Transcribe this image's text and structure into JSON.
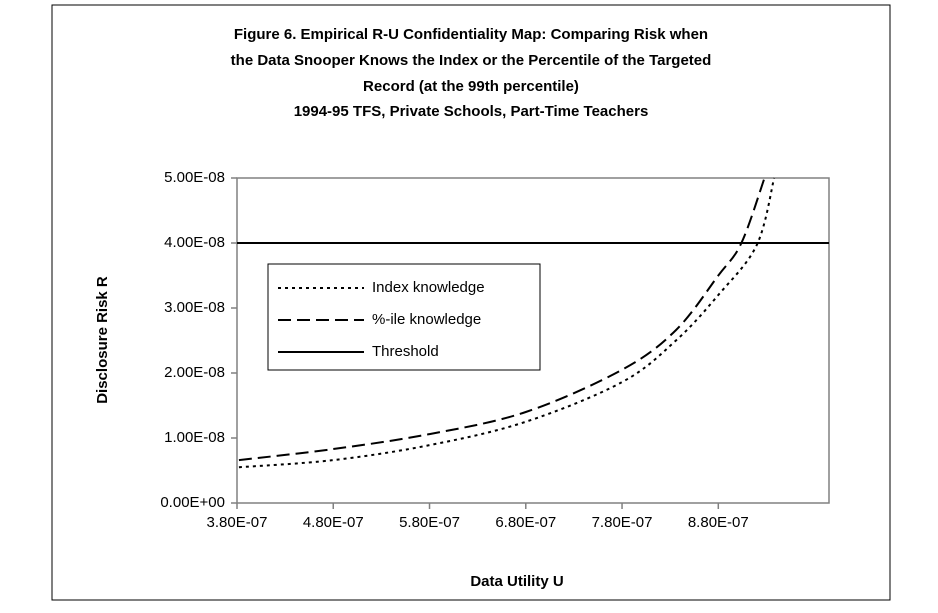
{
  "chart_data": {
    "type": "line",
    "title": [
      "Figure 6. Empirical R-U Confidentiality Map: Comparing Risk when",
      "the Data Snooper Knows the Index or the Percentile of the Targeted",
      "Record (at the 99th percentile)"
    ],
    "subtitle": "1994-95 TFS, Private Schools, Part-Time Teachers",
    "x_label": "Data Utility U",
    "y_label": "Disclosure Risk R",
    "xlim": [
      3.8e-07,
      9.95e-07
    ],
    "xticks": [
      {
        "value": 3.8e-07,
        "label": "3.80E-07"
      },
      {
        "value": 4.8e-07,
        "label": "4.80E-07"
      },
      {
        "value": 5.8e-07,
        "label": "5.80E-07"
      },
      {
        "value": 6.8e-07,
        "label": "6.80E-07"
      },
      {
        "value": 7.8e-07,
        "label": "7.80E-07"
      },
      {
        "value": 8.8e-07,
        "label": "8.80E-07"
      }
    ],
    "ylim": [
      0,
      5e-08
    ],
    "yticks": [
      {
        "value": 0,
        "label": "0.00E+00"
      },
      {
        "value": 1e-08,
        "label": "1.00E-08"
      },
      {
        "value": 2e-08,
        "label": "2.00E-08"
      },
      {
        "value": 3e-08,
        "label": "3.00E-08"
      },
      {
        "value": 4e-08,
        "label": "4.00E-08"
      },
      {
        "value": 5e-08,
        "label": "5.00E-08"
      }
    ],
    "grid": false,
    "legend": "inside-left",
    "series": [
      {
        "name": "Index knowledge",
        "color": "#000000",
        "dash": "dotted",
        "x": [
          3.82e-07,
          4.8e-07,
          5.8e-07,
          6.8e-07,
          7.8e-07,
          8.36e-07,
          8.8e-07,
          9.2e-07,
          9.38e-07
        ],
        "values": [
          5.5e-09,
          6.6e-09,
          8.9e-09,
          1.25e-08,
          1.86e-08,
          2.5e-08,
          3.2e-08,
          3.97e-08,
          5e-08
        ]
      },
      {
        "name": "%-ile knowledge",
        "color": "#000000",
        "dash": "dashed",
        "x": [
          3.82e-07,
          4.8e-07,
          5.8e-07,
          6.8e-07,
          7.8e-07,
          8.36e-07,
          8.8e-07,
          9.04e-07,
          9.28e-07
        ],
        "values": [
          6.6e-09,
          8.3e-09,
          1.06e-08,
          1.4e-08,
          2.05e-08,
          2.66e-08,
          3.5e-08,
          4e-08,
          5e-08
        ]
      },
      {
        "name": "Threshold",
        "color": "#000000",
        "dash": "solid",
        "x": [
          3.8e-07,
          9.95e-07
        ],
        "values": [
          4e-08,
          4e-08
        ]
      }
    ]
  }
}
